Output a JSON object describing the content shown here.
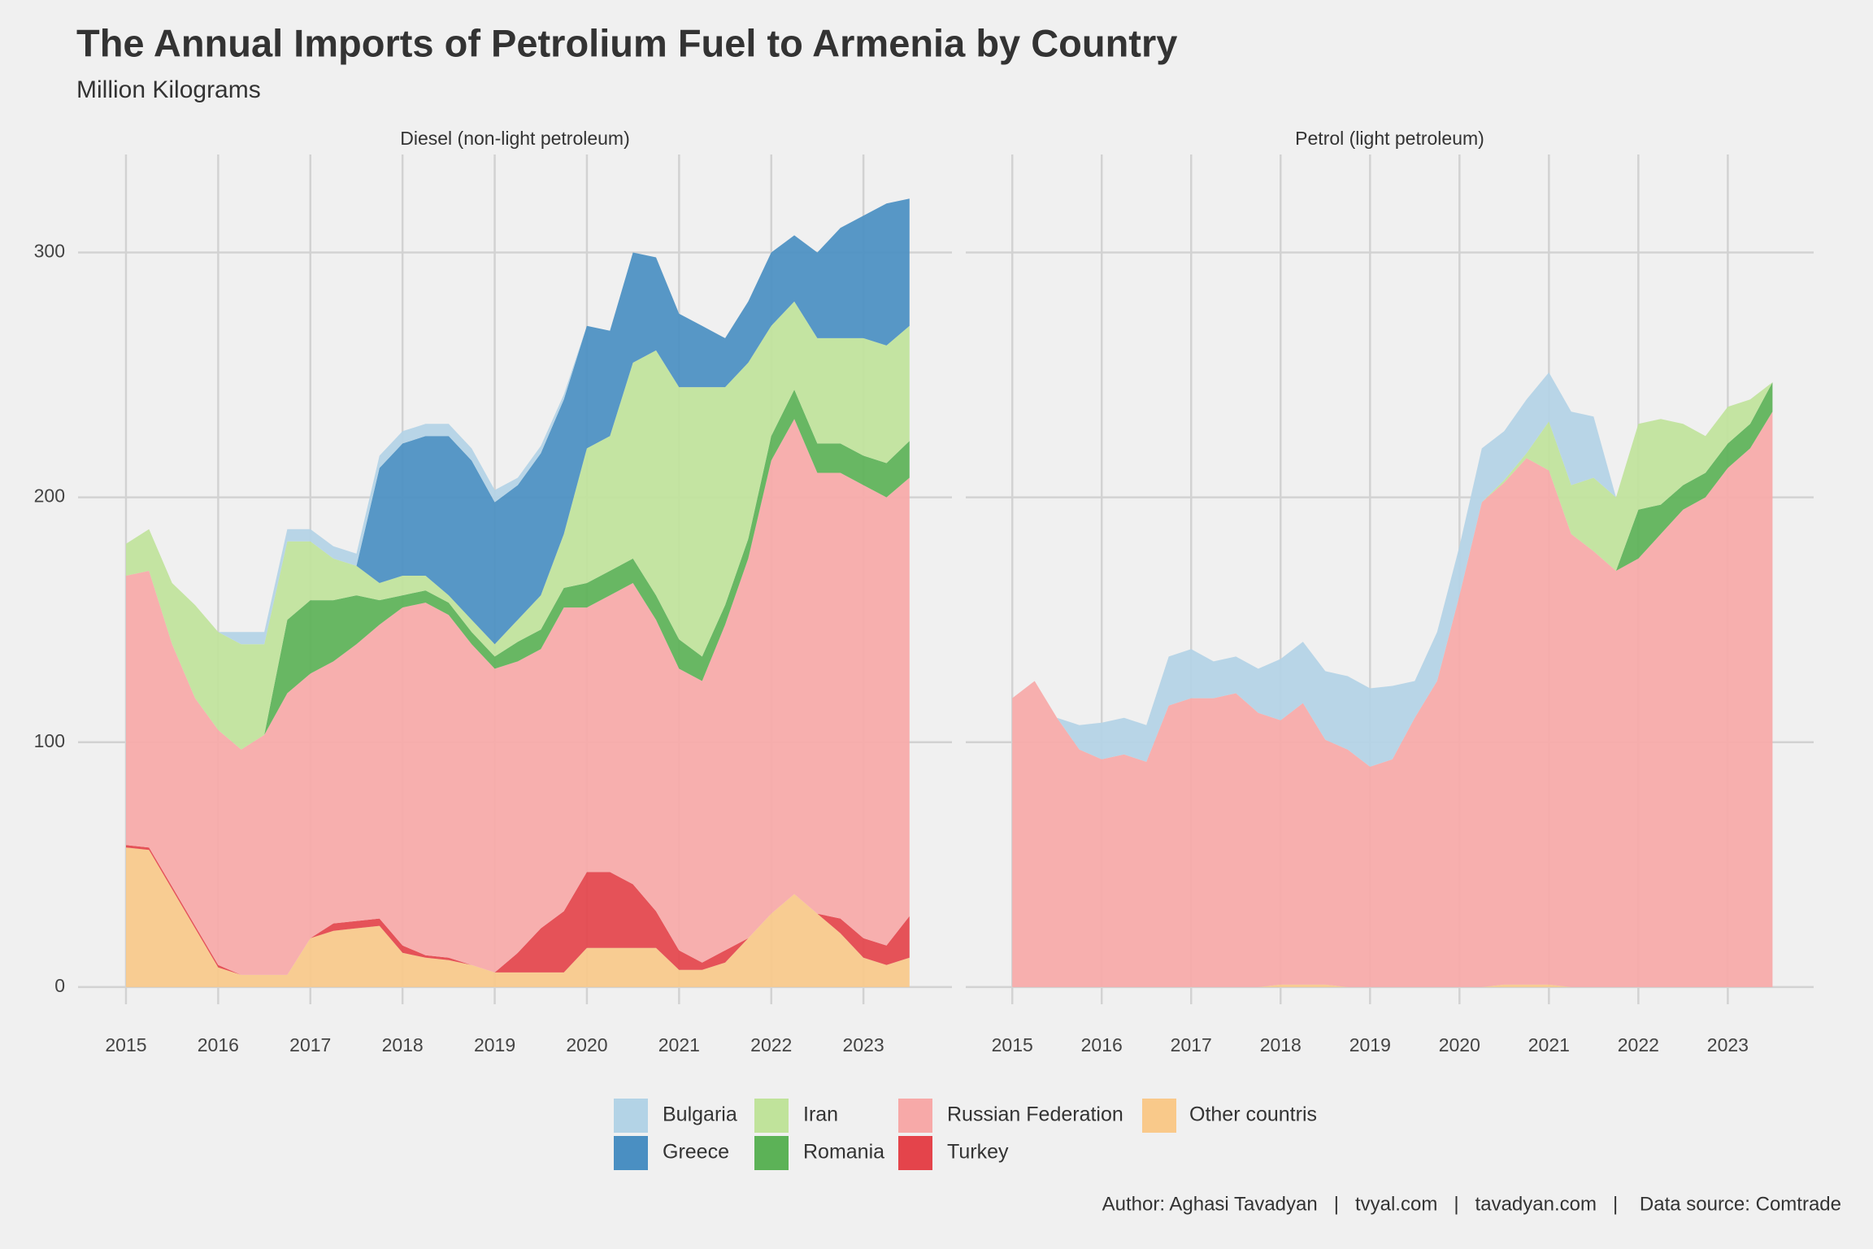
{
  "title": "The Annual Imports of Petrolium Fuel to Armenia by Country",
  "subtitle": "Million Kilograms",
  "caption": "Author: Aghasi Tavadyan   |   tvyal.com   |   tavadyan.com   |    Data source: Comtrade",
  "chart_data": [
    {
      "type": "area",
      "stacked": true,
      "title": "Diesel (non-light petroleum)",
      "x": [
        2015,
        2015.25,
        2015.5,
        2015.75,
        2016,
        2016.25,
        2016.5,
        2016.75,
        2017,
        2017.25,
        2017.5,
        2017.75,
        2018,
        2018.25,
        2018.5,
        2018.75,
        2019,
        2019.25,
        2019.5,
        2019.75,
        2020,
        2020.25,
        2020.5,
        2020.75,
        2021,
        2021.25,
        2021.5,
        2021.75,
        2022,
        2022.25,
        2022.5,
        2022.75,
        2023,
        2023.25,
        2023.5
      ],
      "xlim": [
        2014.48,
        2023.96
      ],
      "xticks": [
        2015,
        2016,
        2017,
        2018,
        2019,
        2020,
        2021,
        2022,
        2023
      ],
      "ylim": [
        -7,
        340
      ],
      "yticks": [
        0,
        100,
        200,
        300
      ],
      "grid": true,
      "series": [
        {
          "name": "Bulgaria",
          "color": "#b3d3e6",
          "values": [
            0,
            0,
            0,
            0,
            0,
            5,
            5,
            5,
            5,
            5,
            5,
            5,
            5,
            5,
            5,
            5,
            5,
            3,
            3,
            2,
            0,
            0,
            0,
            0,
            0,
            0,
            0,
            0,
            0,
            0,
            0,
            0,
            0,
            0,
            0
          ]
        },
        {
          "name": "Greece",
          "color": "#4a8fc2",
          "values": [
            0,
            0,
            0,
            0,
            0,
            0,
            0,
            0,
            0,
            0,
            0,
            47,
            54,
            57,
            65,
            65,
            58,
            55,
            58,
            55,
            50,
            43,
            45,
            38,
            30,
            25,
            20,
            25,
            30,
            27,
            35,
            45,
            50,
            58,
            52
          ]
        },
        {
          "name": "Iran",
          "color": "#c0e39b",
          "values": [
            13,
            17,
            25,
            38,
            40,
            43,
            37,
            32,
            24,
            17,
            12,
            7,
            8,
            6,
            3,
            5,
            5,
            9,
            14,
            22,
            55,
            55,
            80,
            100,
            103,
            110,
            89,
            72,
            45,
            36,
            43,
            43,
            48,
            48,
            47
          ]
        },
        {
          "name": "Romania",
          "color": "#5cb257",
          "values": [
            0,
            0,
            0,
            0,
            0,
            0,
            0,
            30,
            30,
            25,
            20,
            10,
            5,
            5,
            5,
            5,
            5,
            8,
            8,
            8,
            10,
            10,
            10,
            10,
            12,
            10,
            8,
            8,
            10,
            12,
            12,
            12,
            12,
            14,
            15
          ]
        },
        {
          "name": "Russian Federation",
          "color": "#f7a9a8",
          "values": [
            110,
            113,
            99,
            93,
            96,
            92,
            98,
            115,
            108,
            107,
            113,
            120,
            138,
            144,
            140,
            131,
            124,
            119,
            114,
            124,
            108,
            113,
            123,
            119,
            115,
            115,
            133,
            155,
            185,
            194,
            180,
            182,
            185,
            183,
            179
          ]
        },
        {
          "name": "Turkey",
          "color": "#e4444b",
          "values": [
            1,
            1,
            1,
            1,
            1,
            0,
            0,
            0,
            0,
            3,
            3,
            3,
            3,
            1,
            1,
            0,
            0,
            8,
            18,
            25,
            31,
            31,
            26,
            15,
            8,
            3,
            5,
            0,
            0,
            0,
            0,
            6,
            8,
            8,
            17
          ]
        },
        {
          "name": "Other countris",
          "color": "#f9c98a",
          "values": [
            57,
            56,
            40,
            24,
            8,
            5,
            5,
            5,
            20,
            23,
            24,
            25,
            14,
            12,
            11,
            9,
            6,
            6,
            6,
            6,
            16,
            16,
            16,
            16,
            7,
            7,
            10,
            20,
            30,
            38,
            30,
            22,
            12,
            9,
            12
          ]
        }
      ]
    },
    {
      "type": "area",
      "stacked": true,
      "title": "Petrol (light petroleum)",
      "x": [
        2015,
        2015.25,
        2015.5,
        2015.75,
        2016,
        2016.25,
        2016.5,
        2016.75,
        2017,
        2017.25,
        2017.5,
        2017.75,
        2018,
        2018.25,
        2018.5,
        2018.75,
        2019,
        2019.25,
        2019.5,
        2019.75,
        2020,
        2020.25,
        2020.5,
        2020.75,
        2021,
        2021.25,
        2021.5,
        2021.75,
        2022,
        2022.25,
        2022.5,
        2022.75,
        2023,
        2023.25,
        2023.5
      ],
      "xlim": [
        2014.48,
        2023.96
      ],
      "xticks": [
        2015,
        2016,
        2017,
        2018,
        2019,
        2020,
        2021,
        2022,
        2023
      ],
      "ylim": [
        -7,
        340
      ],
      "yticks": [
        0,
        100,
        200,
        300
      ],
      "grid": true,
      "series": [
        {
          "name": "Bulgaria",
          "color": "#b3d3e6",
          "values": [
            0,
            0,
            0,
            10,
            15,
            15,
            15,
            20,
            20,
            15,
            15,
            18,
            25,
            25,
            28,
            30,
            32,
            30,
            15,
            20,
            20,
            22,
            20,
            22,
            20,
            30,
            25,
            0,
            0,
            0,
            0,
            0,
            0,
            0,
            0
          ]
        },
        {
          "name": "Greece",
          "color": "#4a8fc2",
          "values": [
            0,
            0,
            0,
            0,
            0,
            0,
            0,
            0,
            0,
            0,
            0,
            0,
            0,
            0,
            0,
            0,
            0,
            0,
            0,
            0,
            0,
            0,
            0,
            0,
            0,
            0,
            0,
            0,
            0,
            0,
            0,
            0,
            0,
            0,
            0
          ]
        },
        {
          "name": "Iran",
          "color": "#c0e39b",
          "values": [
            0,
            0,
            0,
            0,
            0,
            0,
            0,
            0,
            0,
            0,
            0,
            0,
            0,
            0,
            0,
            0,
            0,
            0,
            0,
            0,
            0,
            0,
            1,
            2,
            20,
            20,
            30,
            30,
            35,
            35,
            25,
            15,
            15,
            10,
            0
          ]
        },
        {
          "name": "Romania",
          "color": "#5cb257",
          "values": [
            0,
            0,
            0,
            0,
            0,
            0,
            0,
            0,
            0,
            0,
            0,
            0,
            0,
            0,
            0,
            0,
            0,
            0,
            0,
            0,
            0,
            0,
            0,
            0,
            0,
            0,
            0,
            0,
            20,
            12,
            10,
            10,
            10,
            10,
            12
          ]
        },
        {
          "name": "Russian Federation",
          "color": "#f7a9a8",
          "values": [
            118,
            125,
            110,
            97,
            93,
            95,
            92,
            115,
            118,
            118,
            120,
            112,
            108,
            115,
            100,
            97,
            90,
            93,
            110,
            125,
            160,
            198,
            205,
            215,
            210,
            185,
            178,
            170,
            175,
            185,
            195,
            200,
            212,
            220,
            235
          ]
        },
        {
          "name": "Turkey",
          "color": "#e4444b",
          "values": [
            0,
            0,
            0,
            0,
            0,
            0,
            0,
            0,
            0,
            0,
            0,
            0,
            0,
            0,
            0,
            0,
            0,
            0,
            0,
            0,
            0,
            0,
            0,
            0,
            0,
            0,
            0,
            0,
            0,
            0,
            0,
            0,
            0,
            0,
            0
          ]
        },
        {
          "name": "Other countris",
          "color": "#f9c98a",
          "values": [
            0,
            0,
            0,
            0,
            0,
            0,
            0,
            0,
            0,
            0,
            0,
            0,
            1,
            1,
            1,
            0,
            0,
            0,
            0,
            0,
            0,
            0,
            1,
            1,
            1,
            0,
            0,
            0,
            0,
            0,
            0,
            0,
            0,
            0,
            0
          ]
        }
      ]
    }
  ]
}
